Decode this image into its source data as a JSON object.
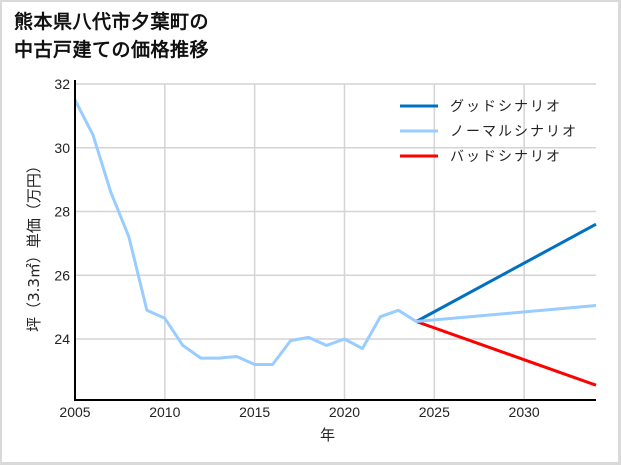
{
  "title_lines": [
    "熊本県八代市夕葉町の",
    "中古戸建ての価格推移"
  ],
  "chart_data": {
    "type": "line",
    "title": "熊本県八代市夕葉町の中古戸建ての価格推移",
    "xlabel": "年",
    "ylabel": "坪（3.3㎡）単価（万円）",
    "xlim": [
      2005,
      2034
    ],
    "ylim": [
      22.1,
      32
    ],
    "xticks": [
      2005,
      2010,
      2015,
      2020,
      2025,
      2030
    ],
    "yticks": [
      24,
      26,
      28,
      30,
      32
    ],
    "grid": true,
    "legend_position": "upper right",
    "series": [
      {
        "name": "ノーマルシナリオ",
        "color": "#99ccff",
        "x": [
          2005,
          2006,
          2007,
          2008,
          2009,
          2010,
          2011,
          2012,
          2013,
          2014,
          2015,
          2016,
          2017,
          2018,
          2019,
          2020,
          2021,
          2022,
          2023,
          2024,
          2034
        ],
        "values": [
          31.5,
          30.4,
          28.6,
          27.2,
          24.9,
          24.65,
          23.8,
          23.4,
          23.4,
          23.45,
          23.2,
          23.2,
          23.95,
          24.05,
          23.8,
          24.0,
          23.7,
          24.7,
          24.9,
          24.55,
          25.05
        ]
      },
      {
        "name": "グッドシナリオ",
        "color": "#0070c0",
        "x": [
          2024,
          2034
        ],
        "values": [
          24.55,
          27.6
        ]
      },
      {
        "name": "バッドシナリオ",
        "color": "#ff0000",
        "x": [
          2024,
          2034
        ],
        "values": [
          24.55,
          22.55
        ]
      }
    ]
  },
  "legend": [
    {
      "label": "グッドシナリオ",
      "color": "#0070c0"
    },
    {
      "label": "ノーマルシナリオ",
      "color": "#99ccff"
    },
    {
      "label": "バッドシナリオ",
      "color": "#ff0000"
    }
  ]
}
